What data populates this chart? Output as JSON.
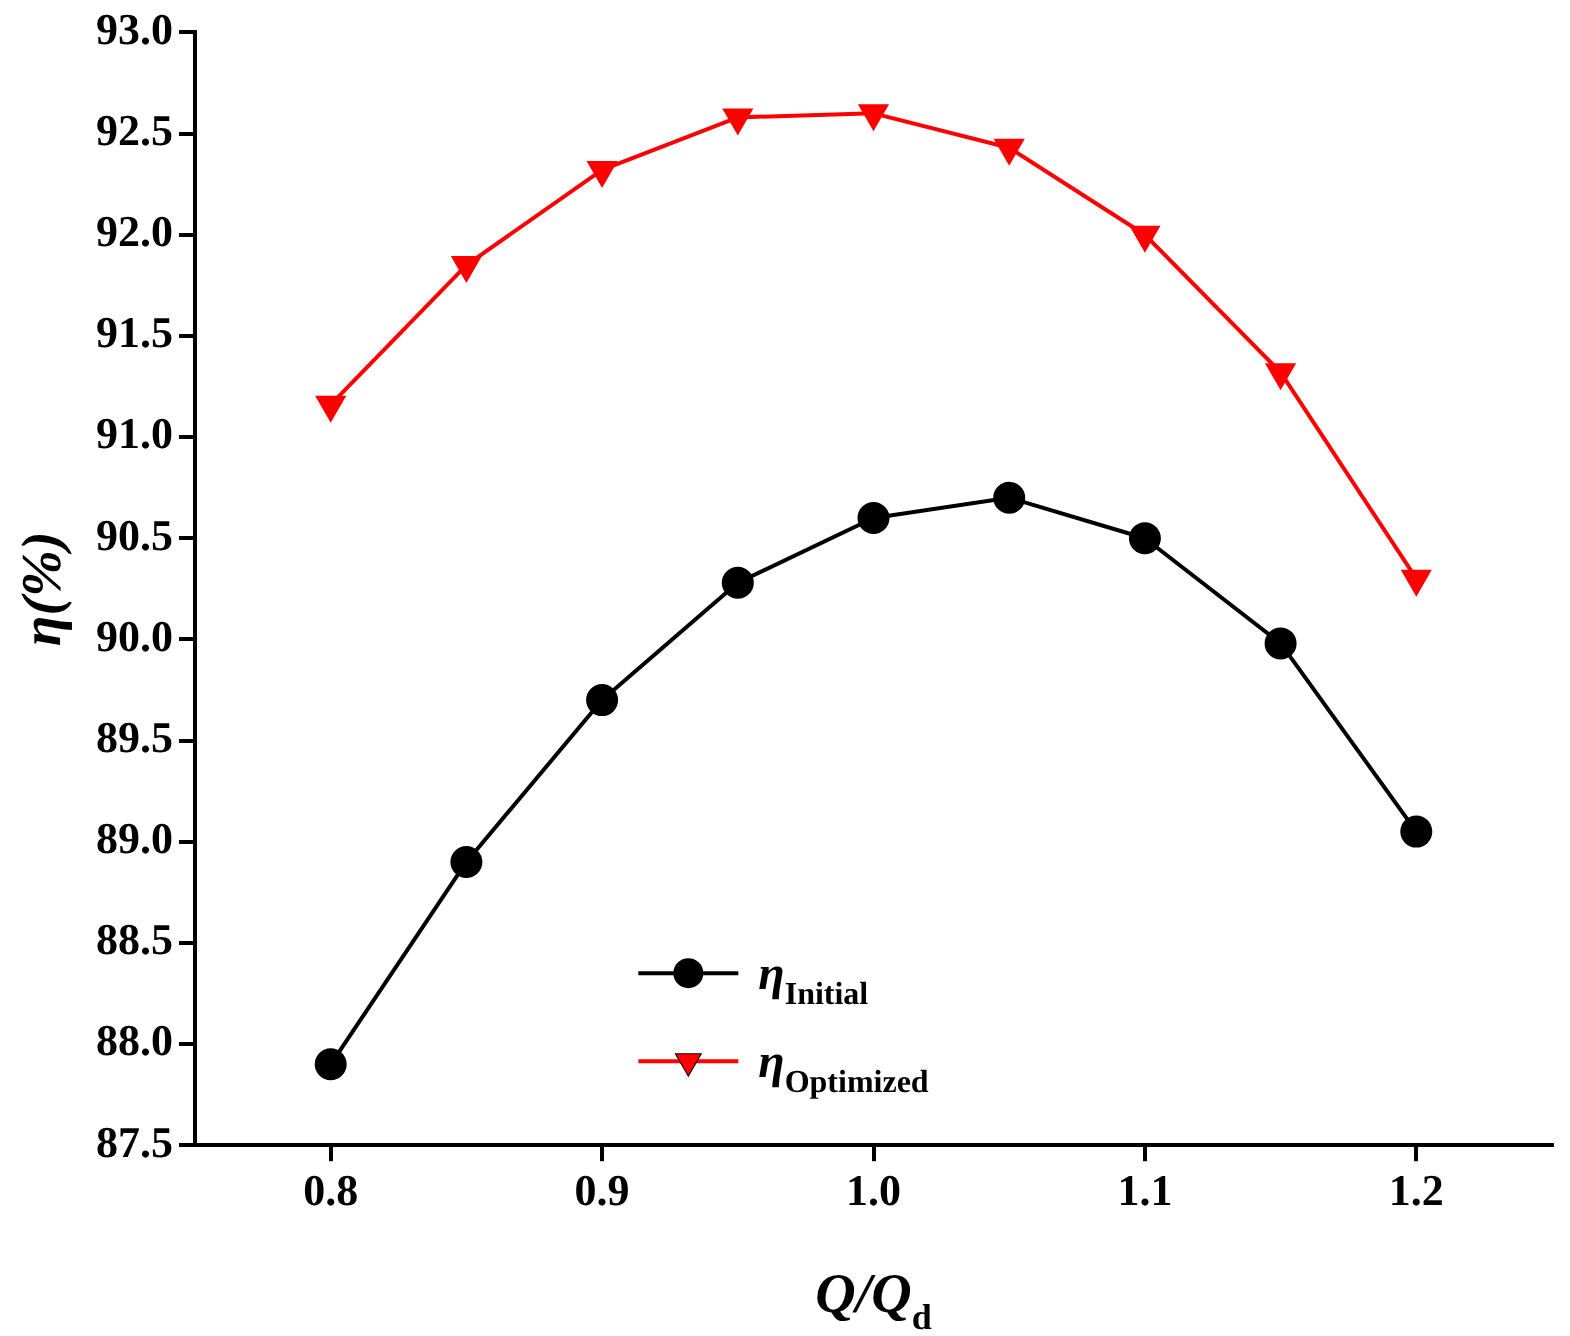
{
  "chart_data": {
    "type": "line",
    "xlabel": "Q/Q$_{d}$",
    "ylabel": "η(%)",
    "x": [
      0.8,
      0.85,
      0.9,
      0.95,
      1.0,
      1.05,
      1.1,
      1.15,
      1.2
    ],
    "series": [
      {
        "name": "η$_{Initial}$",
        "color": "#000000",
        "marker": "circle",
        "values": [
          87.9,
          88.9,
          89.7,
          90.28,
          90.6,
          90.7,
          90.5,
          89.98,
          89.05
        ]
      },
      {
        "name": "η$_{Optimized}$",
        "color": "#ff0000",
        "marker": "triangle",
        "values": [
          91.16,
          91.85,
          92.32,
          92.58,
          92.6,
          92.43,
          92.0,
          91.32,
          90.3
        ]
      }
    ],
    "xlim": [
      0.75,
      1.25
    ],
    "xticks": [
      {
        "value": 0.8,
        "label": "0.8"
      },
      {
        "value": 0.9,
        "label": "0.9"
      },
      {
        "value": 1.0,
        "label": "1.0"
      },
      {
        "value": 1.1,
        "label": "1.1"
      },
      {
        "value": 1.2,
        "label": "1.2"
      }
    ],
    "ylim": [
      87.5,
      93.0
    ],
    "yticks": [
      {
        "value": 87.5,
        "label": "87.5"
      },
      {
        "value": 88.0,
        "label": "88.0"
      },
      {
        "value": 88.5,
        "label": "88.5"
      },
      {
        "value": 89.0,
        "label": "89.0"
      },
      {
        "value": 89.5,
        "label": "89.5"
      },
      {
        "value": 90.0,
        "label": "90.0"
      },
      {
        "value": 90.5,
        "label": "90.5"
      },
      {
        "value": 91.0,
        "label": "91.0"
      },
      {
        "value": 91.5,
        "label": "91.5"
      },
      {
        "value": 92.0,
        "label": "92.0"
      },
      {
        "value": 92.5,
        "label": "92.5"
      },
      {
        "value": 93.0,
        "label": "93.0"
      }
    ],
    "grid": false,
    "legend": "bottom",
    "line_style": "solid"
  }
}
